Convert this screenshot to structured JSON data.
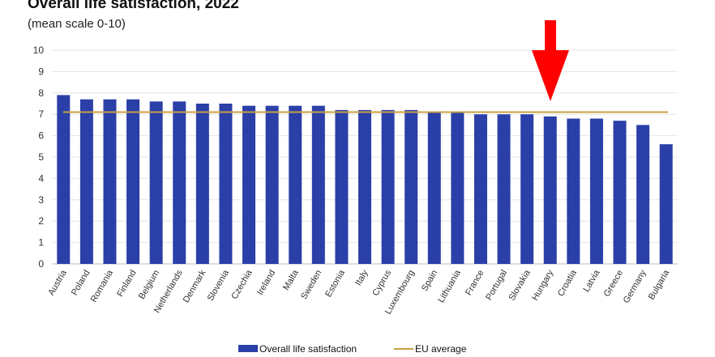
{
  "chart_data": {
    "type": "bar",
    "title": "Overall life satisfaction, 2022",
    "subtitle": "(mean scale 0-10)",
    "xlabel": "",
    "ylabel": "",
    "ylim": [
      0,
      10
    ],
    "yticks": [
      "0",
      "1",
      "2",
      "3",
      "4",
      "5",
      "6",
      "7",
      "8",
      "9",
      "10"
    ],
    "grid": "horizontal",
    "legend_position": "bottom",
    "categories": [
      "Austria",
      "Poland",
      "Romania",
      "Finland",
      "Belgium",
      "Netherlands",
      "Denmark",
      "Slovenia",
      "Czechia",
      "Ireland",
      "Malta",
      "Sweden",
      "Estonia",
      "Italy",
      "Cyprus",
      "Luxembourg",
      "Spain",
      "Lithuania",
      "France",
      "Portugal",
      "Slovakia",
      "Hungary",
      "Croatia",
      "Latvia",
      "Greece",
      "Germany",
      "Bulgaria"
    ],
    "series": [
      {
        "name": "Overall life satisfaction",
        "color": "#2b3fa8",
        "values": [
          7.9,
          7.7,
          7.7,
          7.7,
          7.6,
          7.6,
          7.5,
          7.5,
          7.4,
          7.4,
          7.4,
          7.4,
          7.2,
          7.2,
          7.2,
          7.2,
          7.1,
          7.1,
          7.0,
          7.0,
          7.0,
          6.9,
          6.8,
          6.8,
          6.7,
          6.5,
          5.6
        ]
      }
    ],
    "reference_line": {
      "name": "EU average",
      "value": 7.1,
      "color": "#c8a040"
    },
    "annotation": {
      "type": "arrow",
      "color": "#ff0000",
      "points_to": "Hungary"
    }
  }
}
